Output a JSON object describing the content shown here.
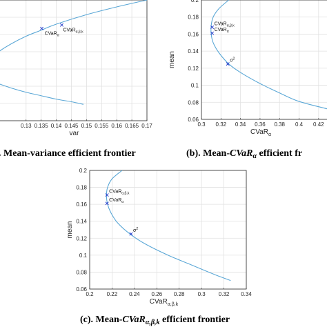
{
  "chart_data": [
    {
      "type": "line",
      "caption": "(a). Mean-variance efficient frontier",
      "xlabel": "var",
      "ylabel": "",
      "xlim": [
        0.12,
        0.17
      ],
      "ylim": [
        0.06,
        0.2
      ],
      "xticks": [
        "0.13",
        "0.135",
        "0.14",
        "0.145",
        "0.15",
        "0.155",
        "0.16",
        "0.165",
        "0.17"
      ],
      "yticks": [],
      "grid": true,
      "series": [
        {
          "x": [
            0.17,
            0.16,
            0.15,
            0.14,
            0.135,
            0.13,
            0.125,
            0.121,
            0.12
          ],
          "y": [
            0.2,
            0.192,
            0.183,
            0.172,
            0.165,
            0.158,
            0.149,
            0.14,
            0.134
          ]
        },
        {
          "x": [
            0.12,
            0.125,
            0.13,
            0.135,
            0.14,
            0.145,
            0.149
          ],
          "y": [
            0.104,
            0.098,
            0.093,
            0.089,
            0.085,
            0.082,
            0.079
          ]
        }
      ],
      "points": [
        {
          "label": "CVaR_α",
          "x": 0.1352,
          "y": 0.167
        },
        {
          "label": "CVaR_α,β,k",
          "x": 0.1418,
          "y": 0.171
        }
      ]
    },
    {
      "type": "line",
      "caption": "(b). Mean-CVaR_α efficient frontier",
      "xlabel": "CVaR_α",
      "ylabel": "mean",
      "xlim": [
        0.3,
        0.43
      ],
      "ylim": [
        0.06,
        0.2
      ],
      "xticks": [
        "0.3",
        "0.32",
        "0.34",
        "0.36",
        "0.38",
        "0.4",
        "0.42"
      ],
      "yticks": [
        "0.06",
        "0.08",
        "0.1",
        "0.12",
        "0.14",
        "0.16",
        "0.18",
        "0.2"
      ],
      "grid": true,
      "series": [
        {
          "x": [
            0.328,
            0.318,
            0.312,
            0.31,
            0.31,
            0.312,
            0.318,
            0.328,
            0.34,
            0.36,
            0.38,
            0.4,
            0.43
          ],
          "y": [
            0.2,
            0.19,
            0.18,
            0.17,
            0.16,
            0.15,
            0.138,
            0.125,
            0.115,
            0.102,
            0.091,
            0.081,
            0.072
          ]
        }
      ],
      "points": [
        {
          "label": "CVaR_α,β,k",
          "x": 0.311,
          "y": 0.168
        },
        {
          "label": "CVaR_α",
          "x": 0.311,
          "y": 0.161
        },
        {
          "label": "σ²",
          "x": 0.327,
          "y": 0.125
        }
      ]
    },
    {
      "type": "line",
      "caption": "(c). Mean-CVaR_α,β,k efficient frontier",
      "xlabel": "CVaR_α,β,k",
      "ylabel": "mean",
      "xlim": [
        0.2,
        0.34
      ],
      "ylim": [
        0.06,
        0.2
      ],
      "xticks": [
        "0.2",
        "0.22",
        "0.24",
        "0.26",
        "0.28",
        "0.3",
        "0.32",
        "0.34"
      ],
      "yticks": [
        "0.06",
        "0.08",
        "0.1",
        "0.12",
        "0.14",
        "0.16",
        "0.18",
        "0.2"
      ],
      "grid": true,
      "series": [
        {
          "x": [
            0.229,
            0.22,
            0.216,
            0.215,
            0.216,
            0.219,
            0.225,
            0.236,
            0.25,
            0.27,
            0.29,
            0.31,
            0.326
          ],
          "y": [
            0.2,
            0.19,
            0.18,
            0.17,
            0.16,
            0.15,
            0.138,
            0.125,
            0.113,
            0.1,
            0.089,
            0.078,
            0.07
          ]
        }
      ],
      "points": [
        {
          "label": "CVaR_α,β,k",
          "x": 0.2155,
          "y": 0.171
        },
        {
          "label": "CVaR_α",
          "x": 0.2155,
          "y": 0.161
        },
        {
          "label": "σ²",
          "x": 0.237,
          "y": 0.125
        }
      ]
    }
  ],
  "captions": {
    "a_prefix": ". Mean-variance efficient frontier",
    "b_prefix": "(b). Mean-",
    "b_math": "CVaR",
    "b_sub": "α",
    "b_suffix": "  efficient fr",
    "c_prefix": "(c). Mean-",
    "c_math": "CVaR",
    "c_sub": "α,β,k",
    "c_suffix": "  efficient frontier"
  },
  "colors": {
    "curve": "#5aa7d6",
    "marker": "#1f35c9",
    "grid": "#e1e1e1",
    "axis": "#262626"
  }
}
